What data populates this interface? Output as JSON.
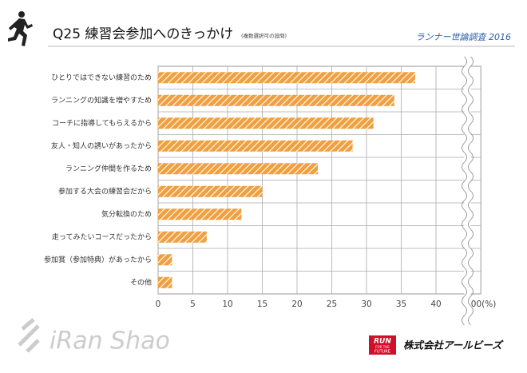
{
  "chart_data": {
    "type": "hbar",
    "title": "Q25 練習会参加へのきっかけ",
    "subtitle": "(複数選択可の設問)",
    "source": "ランナー世論調査 2016",
    "categories": [
      "ひとりではできない練習のため",
      "ランニングの知識を増やすため",
      "コーチに指導してもらえるから",
      "友人・知人の誘いがあったから",
      "ランニング仲間を作るため",
      "参加する大会の練習会だから",
      "気分転換のため",
      "走ってみたいコースだったから",
      "参加賞（参加特典）があったから",
      "その他"
    ],
    "values": [
      37,
      34,
      31,
      28,
      23,
      15,
      12,
      7,
      2,
      2
    ],
    "color": "#f0a040",
    "xlim": [
      0,
      100
    ],
    "axis_break": [
      45,
      99
    ],
    "xticks": [
      0,
      5,
      10,
      15,
      20,
      25,
      30,
      35,
      40,
      {
        "value": 100,
        "label": "100(%)"
      }
    ],
    "grid": true
  },
  "footer": {
    "watermark": "iRan Shao",
    "logo": [
      "RUN",
      "FOR THE",
      "FUTURE"
    ],
    "company": "株式会社アールビーズ"
  }
}
